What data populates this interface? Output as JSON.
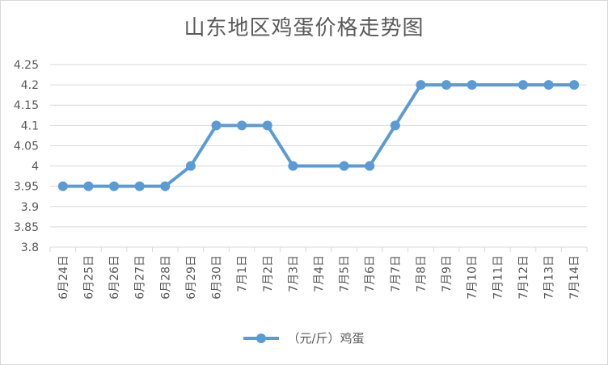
{
  "chart_data": {
    "type": "line",
    "title": "山东地区鸡蛋价格走势图",
    "categories": [
      "6月24日",
      "6月25日",
      "6月26日",
      "6月27日",
      "6月28日",
      "6月29日",
      "6月30日",
      "7月1日",
      "7月2日",
      "7月3日",
      "7月4日",
      "7月5日",
      "7月6日",
      "7月7日",
      "7月8日",
      "7月9日",
      "7月10日",
      "7月11日",
      "7月12日",
      "7月13日",
      "7月14日"
    ],
    "series": [
      {
        "name": "（元/斤）鸡蛋",
        "values": [
          3.95,
          3.95,
          3.95,
          3.95,
          3.95,
          4.0,
          4.1,
          4.1,
          4.1,
          4.0,
          null,
          4.0,
          4.0,
          4.1,
          4.2,
          4.2,
          4.2,
          null,
          4.2,
          4.2,
          4.2
        ]
      }
    ],
    "ylim": [
      3.8,
      4.25
    ],
    "yticks": [
      "4.25",
      "4.2",
      "4.15",
      "4.1",
      "4.05",
      "4",
      "3.95",
      "3.9",
      "3.85",
      "3.8"
    ],
    "grid": true,
    "legend_position": "bottom",
    "colors": {
      "series": "#5b9bd5",
      "grid": "#d9d9d9",
      "text": "#595959"
    }
  }
}
